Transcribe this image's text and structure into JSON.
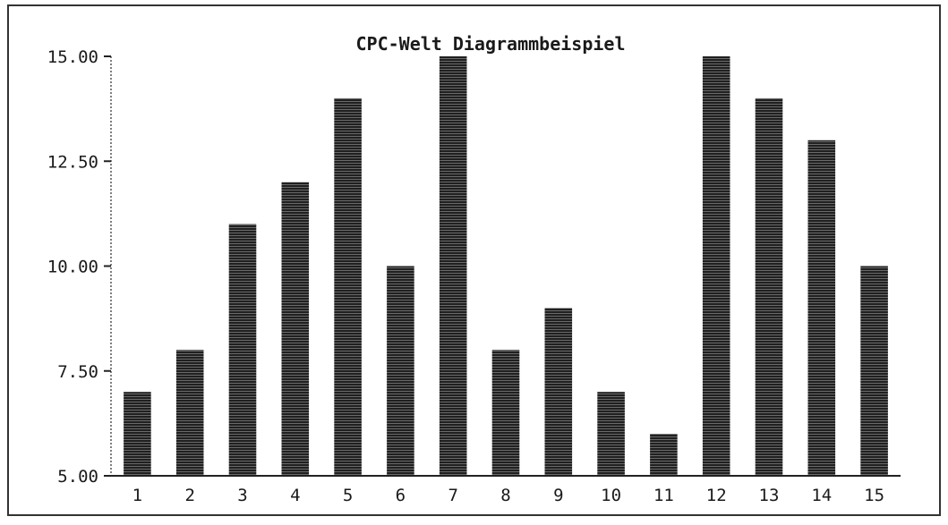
{
  "chart_data": {
    "type": "bar",
    "title": "CPC-Welt Diagrammbeispiel",
    "xlabel": "",
    "ylabel": "",
    "categories": [
      "1",
      "2",
      "3",
      "4",
      "5",
      "6",
      "7",
      "8",
      "9",
      "10",
      "11",
      "12",
      "13",
      "14",
      "15"
    ],
    "values": [
      7,
      8,
      11,
      12,
      14,
      10,
      15,
      8,
      9,
      7,
      6,
      15,
      14,
      13,
      10
    ],
    "ylim": [
      5,
      15
    ],
    "yticks": [
      5,
      7.5,
      10,
      12.5,
      15
    ],
    "ytick_labels": [
      "5.00",
      "7.50",
      "10.00",
      "12.50",
      "15.00"
    ],
    "grid": false,
    "legend": "none",
    "bar_color": "#262626"
  }
}
